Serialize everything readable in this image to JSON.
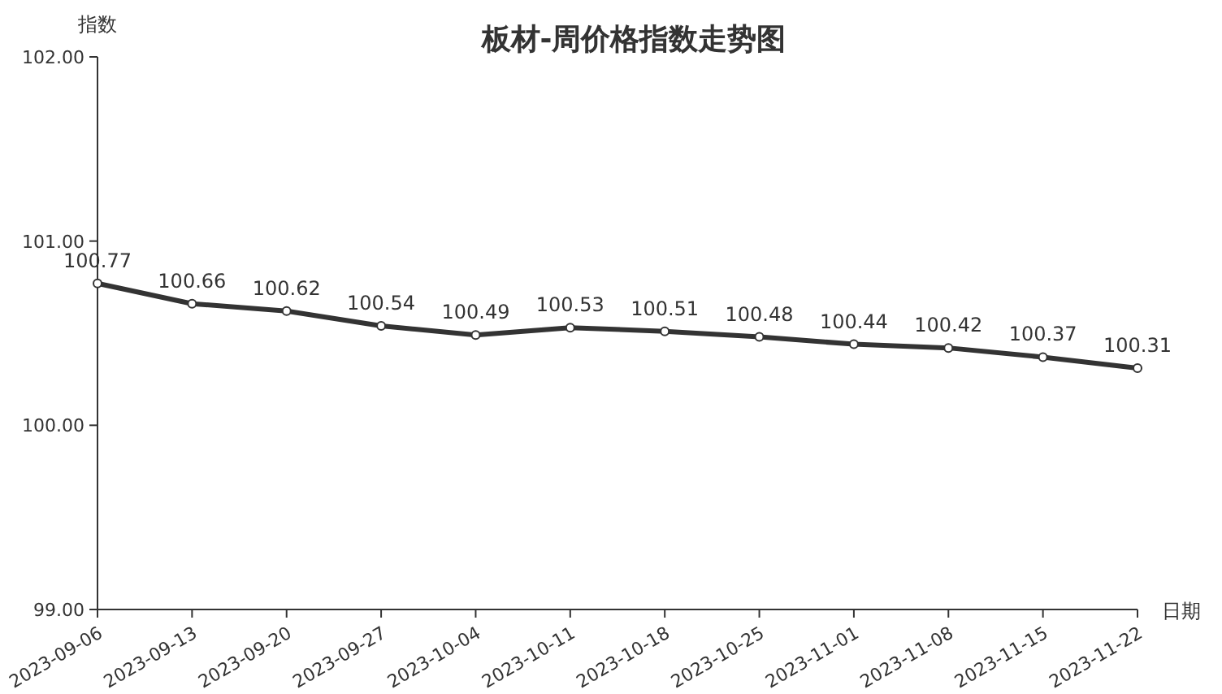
{
  "chart_data": {
    "type": "line",
    "title": "板材-周价格指数走势图",
    "ylabel": "指数",
    "xlabel": "日期",
    "categories": [
      "2023-09-06",
      "2023-09-13",
      "2023-09-20",
      "2023-09-27",
      "2023-10-04",
      "2023-10-11",
      "2023-10-18",
      "2023-10-25",
      "2023-11-01",
      "2023-11-08",
      "2023-11-15",
      "2023-11-22"
    ],
    "values": [
      100.77,
      100.66,
      100.62,
      100.54,
      100.49,
      100.53,
      100.51,
      100.48,
      100.44,
      100.42,
      100.37,
      100.31
    ],
    "color": "#333333",
    "marker": "circle",
    "line_style": "solid",
    "data_labels": true,
    "ylim": [
      99,
      102
    ],
    "yticks": [
      {
        "value": 99,
        "label": "99.00"
      },
      {
        "value": 100,
        "label": "100.00"
      },
      {
        "value": 101,
        "label": "101.00"
      },
      {
        "value": 102,
        "label": "102.00"
      }
    ]
  }
}
